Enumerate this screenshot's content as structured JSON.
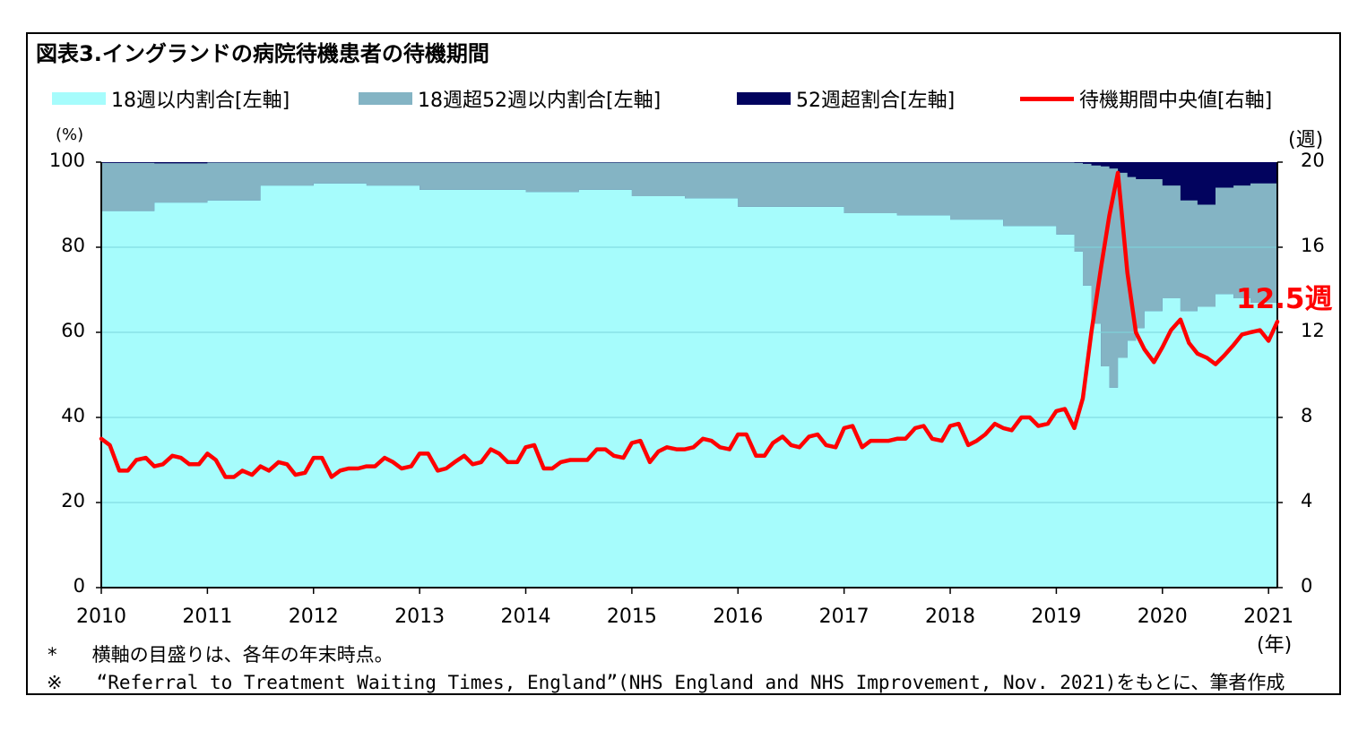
{
  "chart_data": {
    "type": "area+line",
    "title": "図表3.イングランドの病院待機患者の待機期間",
    "legend": [
      {
        "label": "18週以内割合[左軸]",
        "color": "#a6fcfc",
        "kind": "area"
      },
      {
        "label": "18週超52週以内割合[左軸]",
        "color": "#84b4c4",
        "kind": "area"
      },
      {
        "label": "52週超割合[左軸]",
        "color": "#02035e",
        "kind": "area"
      },
      {
        "label": "待機期間中央値[右軸]",
        "color": "#ff0000",
        "kind": "line"
      }
    ],
    "y_left_unit": "(%)",
    "y_right_unit": "(週)",
    "x_unit": "(年)",
    "y_left_ticks": [
      "0",
      "20",
      "40",
      "60",
      "80",
      "100"
    ],
    "y_right_ticks": [
      "0",
      "4",
      "8",
      "12",
      "16",
      "20"
    ],
    "ylim_left": [
      0,
      100
    ],
    "ylim_right": [
      0,
      20
    ],
    "x_ticks": [
      "2010",
      "2011",
      "2012",
      "2013",
      "2014",
      "2015",
      "2016",
      "2017",
      "2018",
      "2019",
      "2020",
      "2021"
    ],
    "x_start": 2010.0,
    "x_end": 2021.083,
    "series": [
      {
        "name": "18週以内割合",
        "axis": "left",
        "x": [
          2010.0,
          2010.5,
          2011.0,
          2011.5,
          2012.0,
          2012.5,
          2013.0,
          2013.5,
          2014.0,
          2014.5,
          2015.0,
          2015.5,
          2016.0,
          2016.5,
          2017.0,
          2017.5,
          2018.0,
          2018.5,
          2019.0,
          2019.17,
          2019.25,
          2019.33,
          2019.42,
          2019.5,
          2019.58,
          2019.67,
          2019.75,
          2019.83,
          2020.0,
          2020.17,
          2020.33,
          2020.5,
          2020.67,
          2020.83,
          2021.0,
          2021.083
        ],
        "values": [
          88.5,
          90.5,
          91,
          94.5,
          95,
          94.5,
          93.5,
          93.5,
          93,
          93.5,
          92,
          91.5,
          89.5,
          89.5,
          88,
          87.5,
          86.5,
          85,
          83,
          79,
          71,
          62,
          52,
          47,
          54,
          58,
          61,
          65,
          68,
          65,
          66,
          69,
          68,
          67,
          67,
          66
        ]
      },
      {
        "name": "18週超52週以内割合",
        "axis": "left",
        "x": [
          2010.0,
          2010.5,
          2011.0,
          2011.5,
          2012.0,
          2012.5,
          2013.0,
          2013.5,
          2014.0,
          2014.5,
          2015.0,
          2015.5,
          2016.0,
          2016.5,
          2017.0,
          2017.5,
          2018.0,
          2018.5,
          2019.0,
          2019.17,
          2019.25,
          2019.33,
          2019.42,
          2019.5,
          2019.58,
          2019.67,
          2019.75,
          2019.83,
          2020.0,
          2020.17,
          2020.33,
          2020.5,
          2020.67,
          2020.83,
          2021.0,
          2021.083
        ],
        "values": [
          11.3,
          9.2,
          8.9,
          5.4,
          4.9,
          5.4,
          6.4,
          6.4,
          6.9,
          6.4,
          7.9,
          8.4,
          10.4,
          10.4,
          11.9,
          12.4,
          13.4,
          14.9,
          16.9,
          20.8,
          28.6,
          37.2,
          47,
          51.5,
          43.5,
          38.5,
          35,
          31,
          26.5,
          26,
          24,
          25,
          26.5,
          28,
          28,
          29
        ]
      },
      {
        "name": "52週超割合",
        "axis": "left",
        "x": [
          2010.0,
          2010.5,
          2011.0,
          2011.5,
          2012.0,
          2012.5,
          2013.0,
          2013.5,
          2014.0,
          2014.5,
          2015.0,
          2015.5,
          2016.0,
          2016.5,
          2017.0,
          2017.5,
          2018.0,
          2018.5,
          2019.0,
          2019.17,
          2019.25,
          2019.33,
          2019.42,
          2019.5,
          2019.58,
          2019.67,
          2019.75,
          2019.83,
          2020.0,
          2020.17,
          2020.33,
          2020.5,
          2020.67,
          2020.83,
          2021.0,
          2021.083
        ],
        "values": [
          0.2,
          0.3,
          0.1,
          0.1,
          0.1,
          0.1,
          0.1,
          0.1,
          0.1,
          0.1,
          0.1,
          0.1,
          0.1,
          0.1,
          0.1,
          0.1,
          0.1,
          0.1,
          0.1,
          0.2,
          0.4,
          0.8,
          1,
          1.5,
          2.5,
          3.5,
          4,
          4,
          5.5,
          9,
          10,
          6,
          5.5,
          5,
          5,
          5
        ]
      },
      {
        "name": "待機期間中央値",
        "axis": "right",
        "x": [
          2010.0,
          2010.08,
          2010.17,
          2010.25,
          2010.33,
          2010.42,
          2010.5,
          2010.58,
          2010.67,
          2010.75,
          2010.83,
          2010.92,
          2011.0,
          2011.08,
          2011.17,
          2011.25,
          2011.33,
          2011.42,
          2011.5,
          2011.58,
          2011.67,
          2011.75,
          2011.83,
          2011.92,
          2012.0,
          2012.08,
          2012.17,
          2012.25,
          2012.33,
          2012.42,
          2012.5,
          2012.58,
          2012.67,
          2012.75,
          2012.83,
          2012.92,
          2013.0,
          2013.08,
          2013.17,
          2013.25,
          2013.33,
          2013.42,
          2013.5,
          2013.58,
          2013.67,
          2013.75,
          2013.83,
          2013.92,
          2014.0,
          2014.08,
          2014.17,
          2014.25,
          2014.33,
          2014.42,
          2014.5,
          2014.58,
          2014.67,
          2014.75,
          2014.83,
          2014.92,
          2015.0,
          2015.08,
          2015.17,
          2015.25,
          2015.33,
          2015.42,
          2015.5,
          2015.58,
          2015.67,
          2015.75,
          2015.83,
          2015.92,
          2016.0,
          2016.08,
          2016.17,
          2016.25,
          2016.33,
          2016.42,
          2016.5,
          2016.58,
          2016.67,
          2016.75,
          2016.83,
          2016.92,
          2017.0,
          2017.08,
          2017.17,
          2017.25,
          2017.33,
          2017.42,
          2017.5,
          2017.58,
          2017.67,
          2017.75,
          2017.83,
          2017.92,
          2018.0,
          2018.08,
          2018.17,
          2018.25,
          2018.33,
          2018.42,
          2018.5,
          2018.58,
          2018.67,
          2018.75,
          2018.83,
          2018.92,
          2019.0,
          2019.08,
          2019.17,
          2019.25,
          2019.33,
          2019.42,
          2019.5,
          2019.58,
          2019.67,
          2019.75,
          2019.83,
          2019.92,
          2020.0,
          2020.08,
          2020.17,
          2020.25,
          2020.33,
          2020.42,
          2020.5,
          2020.58,
          2020.67,
          2020.75,
          2020.83,
          2020.92,
          2021.0,
          2021.083
        ],
        "values": [
          7.0,
          6.7,
          5.5,
          5.5,
          6.0,
          6.1,
          5.7,
          5.8,
          6.2,
          6.1,
          5.8,
          5.8,
          6.3,
          6.0,
          5.2,
          5.2,
          5.5,
          5.3,
          5.7,
          5.5,
          5.9,
          5.8,
          5.3,
          5.4,
          6.1,
          6.1,
          5.2,
          5.5,
          5.6,
          5.6,
          5.7,
          5.7,
          6.1,
          5.9,
          5.6,
          5.7,
          6.3,
          6.3,
          5.5,
          5.6,
          5.9,
          6.2,
          5.8,
          5.9,
          6.5,
          6.3,
          5.9,
          5.9,
          6.6,
          6.7,
          5.6,
          5.6,
          5.9,
          6.0,
          6.0,
          6.0,
          6.5,
          6.5,
          6.2,
          6.1,
          6.8,
          6.9,
          5.9,
          6.4,
          6.6,
          6.5,
          6.5,
          6.6,
          7.0,
          6.9,
          6.6,
          6.5,
          7.2,
          7.2,
          6.2,
          6.2,
          6.8,
          7.1,
          6.7,
          6.6,
          7.1,
          7.2,
          6.7,
          6.6,
          7.5,
          7.6,
          6.6,
          6.9,
          6.9,
          6.9,
          7.0,
          7.0,
          7.5,
          7.6,
          7.0,
          6.9,
          7.6,
          7.7,
          6.7,
          6.9,
          7.2,
          7.7,
          7.5,
          7.4,
          8.0,
          8.0,
          7.6,
          7.7,
          8.3,
          8.4,
          7.5,
          8.9,
          12.0,
          15.0,
          17.5,
          19.5,
          14.8,
          12.0,
          11.2,
          10.6,
          11.3,
          12.1,
          12.6,
          11.5,
          11.0,
          10.8,
          10.5,
          10.9,
          11.4,
          11.9,
          12.0,
          12.1,
          11.6,
          12.5
        ]
      }
    ],
    "annotation": "12.5週"
  },
  "notes": [
    {
      "mark": "*",
      "text": "横軸の目盛りは、各年の年末時点。"
    },
    {
      "mark": "※",
      "text": "“Referral to Treatment Waiting Times, England”(NHS England and NHS Improvement, Nov. 2021)をもとに、筆者作成"
    }
  ]
}
